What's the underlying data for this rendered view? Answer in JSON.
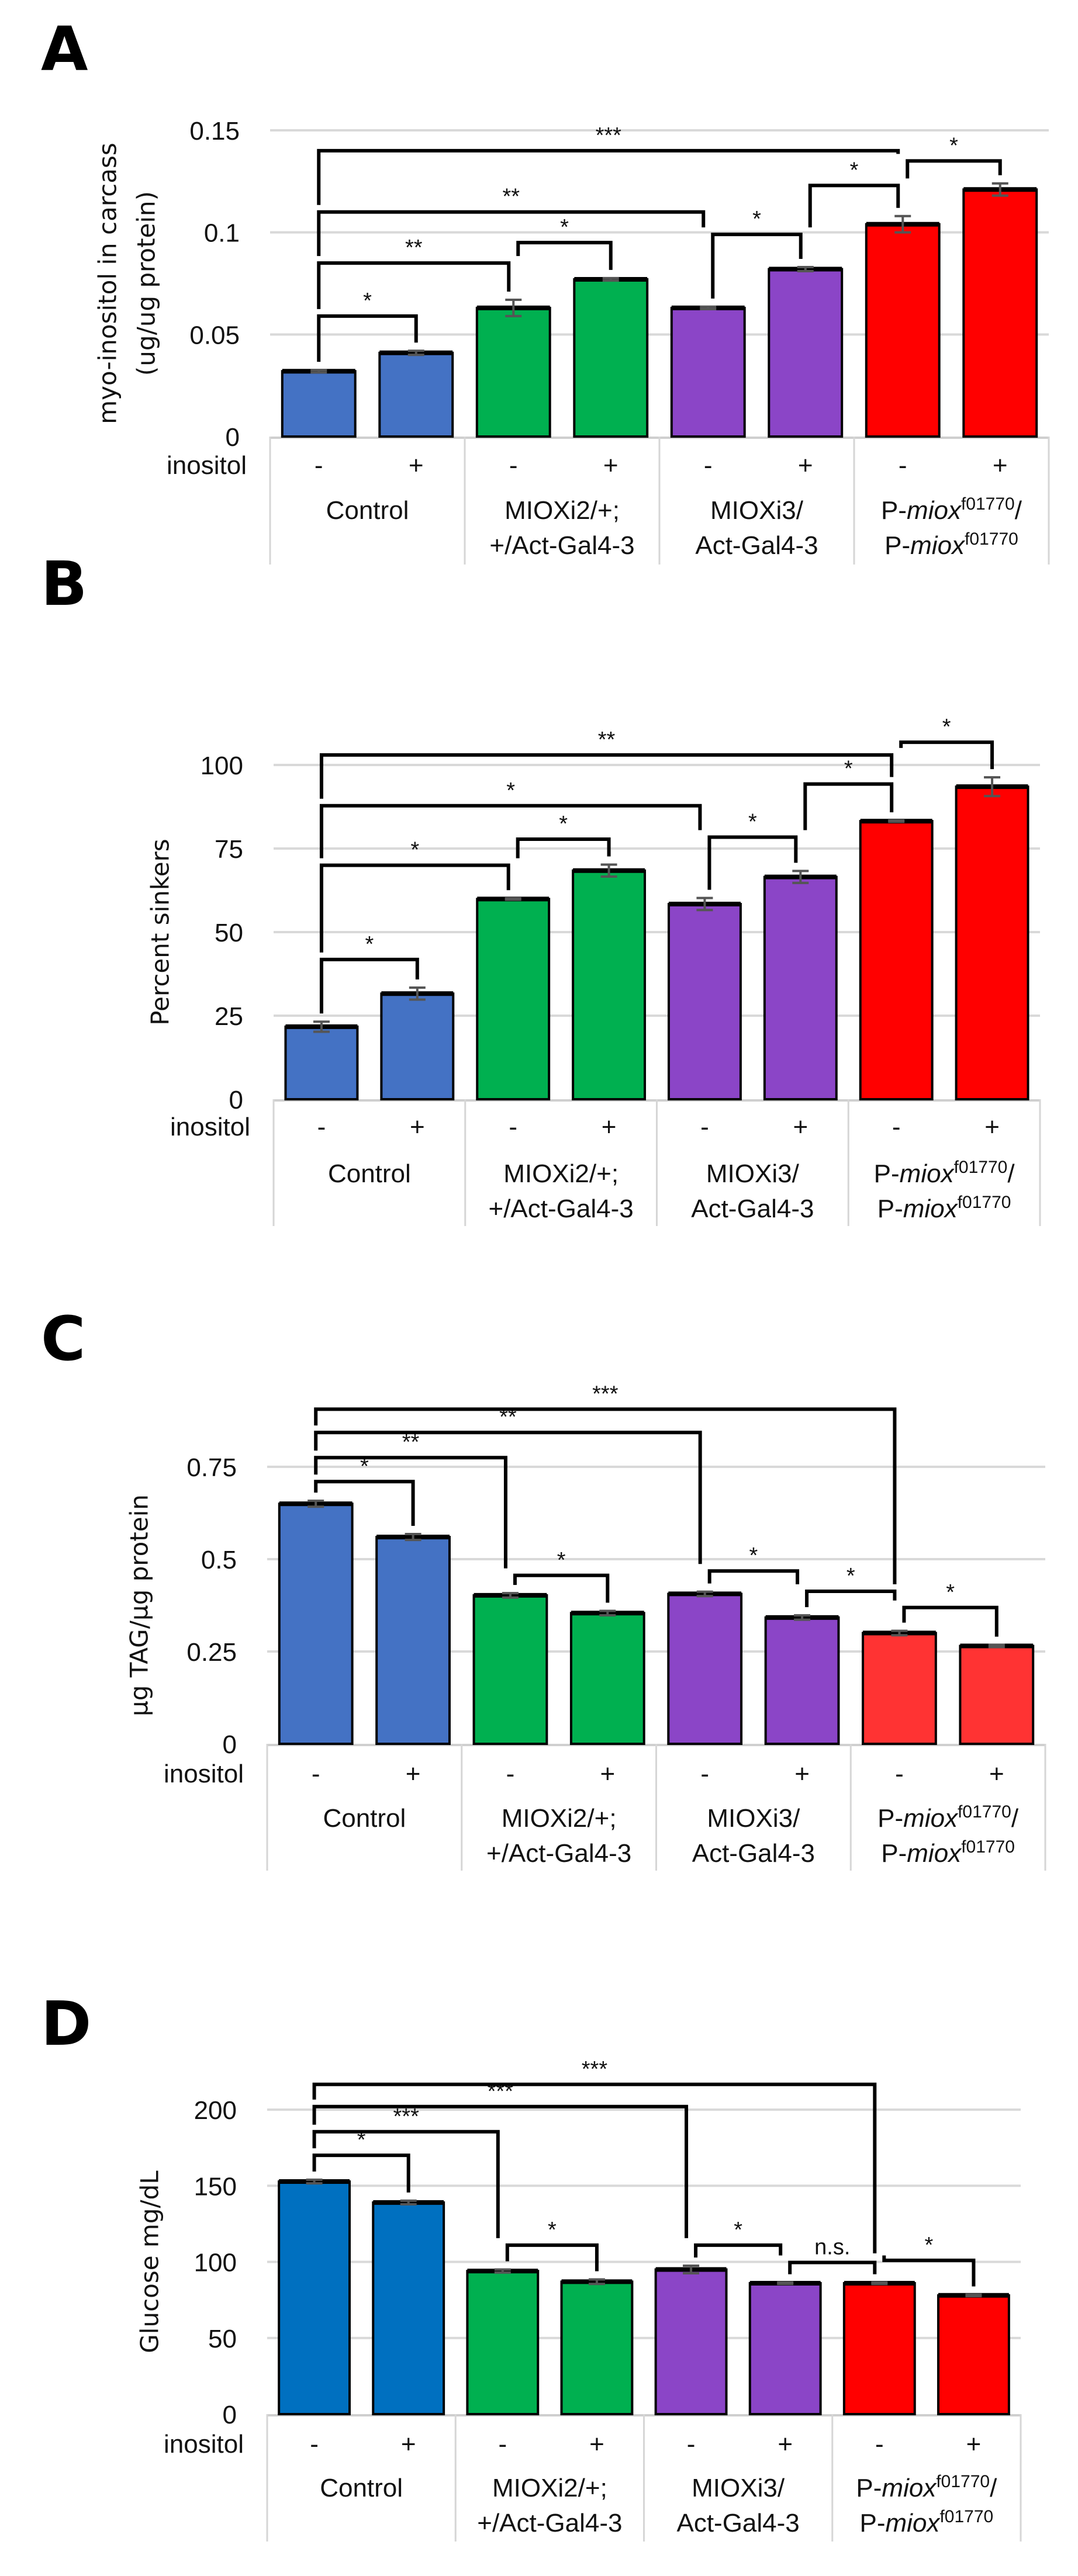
{
  "chart_data": [
    {
      "type": "bar",
      "panel_label": "A",
      "ylabel": [
        "myo-inositol in carcass",
        "(ug/ug protein)"
      ],
      "ylim": [
        0,
        0.15
      ],
      "yticks": [
        "0",
        "0.05",
        "0.1",
        "0.15"
      ],
      "ytick_values": [
        0,
        0.05,
        0.1,
        0.15
      ],
      "grid": true,
      "treatment_label": "inositol",
      "treatments": [
        "-",
        "+",
        "-",
        "+",
        "-",
        "+",
        "-",
        "+"
      ],
      "groups": [
        {
          "lines": [
            [
              {
                "t": "Control"
              }
            ]
          ]
        },
        {
          "lines": [
            [
              {
                "t": "MIOXi2/+;"
              }
            ],
            [
              {
                "t": "+/Act-Gal4-3"
              }
            ]
          ]
        },
        {
          "lines": [
            [
              {
                "t": "MIOXi3/"
              }
            ],
            [
              {
                "t": "Act-Gal4-3"
              }
            ]
          ]
        },
        {
          "lines": [
            [
              {
                "t": "P-"
              },
              {
                "t": "miox",
                "i": true
              },
              {
                "t": "f01770",
                "sup": true
              },
              {
                "t": "/"
              }
            ],
            [
              {
                "t": "P-"
              },
              {
                "t": "miox",
                "i": true
              },
              {
                "t": "f01770",
                "sup": true
              }
            ]
          ]
        }
      ],
      "colors": [
        "#4472C4",
        "#4472C4",
        "#00B050",
        "#00B050",
        "#8B45C7",
        "#8B45C7",
        "#FF0000",
        "#FF0000"
      ],
      "values": [
        0.032,
        0.041,
        0.063,
        0.077,
        0.063,
        0.082,
        0.104,
        0.121
      ],
      "errors": [
        0.0006,
        0.001,
        0.004,
        0.0006,
        0.0006,
        0.001,
        0.004,
        0.003
      ],
      "significance": [
        {
          "from": 0,
          "to": 1,
          "label": "*",
          "level": 0.059
        },
        {
          "from": 0,
          "to": 2,
          "label": "**",
          "level": 0.085
        },
        {
          "from": 2,
          "to": 3,
          "label": "*",
          "level": 0.095
        },
        {
          "from": 4,
          "to": 5,
          "label": "*",
          "level": 0.099
        },
        {
          "from": 0,
          "to": 4,
          "label": "**",
          "level": 0.11
        },
        {
          "from": 5,
          "to": 6,
          "label": "*",
          "level": 0.123
        },
        {
          "from": 6,
          "to": 7,
          "label": "*",
          "level": 0.135
        },
        {
          "from": 0,
          "to": 6,
          "label": "***",
          "level": 0.14
        }
      ]
    },
    {
      "type": "bar",
      "panel_label": "B",
      "ylabel": [
        "Percent sinkers"
      ],
      "ylim": [
        0,
        100
      ],
      "yticks": [
        "0",
        "25",
        "50",
        "75",
        "100"
      ],
      "ytick_values": [
        0,
        25,
        50,
        75,
        100
      ],
      "grid": true,
      "treatment_label": "inositol",
      "treatments": [
        "-",
        "+",
        "-",
        "+",
        "-",
        "+",
        "-",
        "+"
      ],
      "groups": [
        {
          "lines": [
            [
              {
                "t": "Control"
              }
            ]
          ]
        },
        {
          "lines": [
            [
              {
                "t": "MIOXi2/+;"
              }
            ],
            [
              {
                "t": "+/Act-Gal4-3"
              }
            ]
          ]
        },
        {
          "lines": [
            [
              {
                "t": "MIOXi3/"
              }
            ],
            [
              {
                "t": "Act-Gal4-3"
              }
            ]
          ]
        },
        {
          "lines": [
            [
              {
                "t": "P-"
              },
              {
                "t": "miox",
                "i": true
              },
              {
                "t": "f01770",
                "sup": true
              },
              {
                "t": "/"
              }
            ],
            [
              {
                "t": "P-"
              },
              {
                "t": "miox",
                "i": true
              },
              {
                "t": "f01770",
                "sup": true
              }
            ]
          ]
        }
      ],
      "colors": [
        "#4472C4",
        "#4472C4",
        "#00B050",
        "#00B050",
        "#8B45C7",
        "#8B45C7",
        "#FF0000",
        "#FF0000"
      ],
      "values": [
        21.7,
        31.6,
        59.9,
        68.4,
        58.4,
        66.5,
        83.2,
        93.5
      ],
      "errors": [
        1.5,
        1.8,
        0.2,
        1.8,
        1.8,
        1.8,
        0.2,
        2.8
      ],
      "significance": [
        {
          "from": 0,
          "to": 1,
          "label": "*",
          "level": 41.8
        },
        {
          "from": 0,
          "to": 2,
          "label": "*",
          "level": 70
        },
        {
          "from": 2,
          "to": 3,
          "label": "*",
          "level": 77.8
        },
        {
          "from": 4,
          "to": 5,
          "label": "*",
          "level": 78.4
        },
        {
          "from": 0,
          "to": 4,
          "label": "*",
          "level": 87.8
        },
        {
          "from": 5,
          "to": 6,
          "label": "*",
          "level": 94.3
        },
        {
          "from": 0,
          "to": 6,
          "label": "**",
          "level": 103
        },
        {
          "from": 6,
          "to": 7,
          "label": "*",
          "level": 106.8
        }
      ]
    },
    {
      "type": "bar",
      "panel_label": "C",
      "ylabel": [
        "µg TAG/µg protein"
      ],
      "ylim": [
        0,
        0.75
      ],
      "yticks": [
        "0",
        "0.25",
        "0.5",
        "0.75"
      ],
      "ytick_values": [
        0,
        0.25,
        0.5,
        0.75
      ],
      "grid": true,
      "treatment_label": "inositol",
      "treatments": [
        "-",
        "+",
        "-",
        "+",
        "-",
        "+",
        "-",
        "+"
      ],
      "groups": [
        {
          "lines": [
            [
              {
                "t": "Control"
              }
            ]
          ]
        },
        {
          "lines": [
            [
              {
                "t": "MIOXi2/+;"
              }
            ],
            [
              {
                "t": "+/Act-Gal4-3"
              }
            ]
          ]
        },
        {
          "lines": [
            [
              {
                "t": "MIOXi3/"
              }
            ],
            [
              {
                "t": "Act-Gal4-3"
              }
            ]
          ]
        },
        {
          "lines": [
            [
              {
                "t": "P-"
              },
              {
                "t": "miox",
                "i": true
              },
              {
                "t": "f01770",
                "sup": true
              },
              {
                "t": "/"
              }
            ],
            [
              {
                "t": "P-"
              },
              {
                "t": "miox",
                "i": true
              },
              {
                "t": "f01770",
                "sup": true
              }
            ]
          ]
        }
      ],
      "colors": [
        "#4472C4",
        "#4472C4",
        "#00B050",
        "#00B050",
        "#8B45C7",
        "#8B45C7",
        "#FF3333",
        "#FF3333"
      ],
      "values": [
        0.65,
        0.56,
        0.402,
        0.354,
        0.406,
        0.342,
        0.3,
        0.265
      ],
      "errors": [
        0.008,
        0.008,
        0.006,
        0.006,
        0.006,
        0.006,
        0.006,
        0.003
      ],
      "significance": [
        {
          "from": 0,
          "to": 1,
          "label": "*",
          "level": 0.71
        },
        {
          "from": 0,
          "to": 2,
          "label": "**",
          "level": 0.775
        },
        {
          "from": 0,
          "to": 4,
          "label": "**",
          "level": 0.843
        },
        {
          "from": 0,
          "to": 6,
          "label": "***",
          "level": 0.906
        },
        {
          "from": 2,
          "to": 3,
          "label": "*",
          "level": 0.456
        },
        {
          "from": 4,
          "to": 5,
          "label": "*",
          "level": 0.468
        },
        {
          "from": 5,
          "to": 6,
          "label": "*",
          "level": 0.413
        },
        {
          "from": 6,
          "to": 7,
          "label": "*",
          "level": 0.369
        }
      ]
    },
    {
      "type": "bar",
      "panel_label": "D",
      "ylabel": [
        "Glucose mg/dL"
      ],
      "ylim": [
        0,
        200
      ],
      "yticks": [
        "0",
        "50",
        "100",
        "150",
        "200"
      ],
      "ytick_values": [
        0,
        50,
        100,
        150,
        200
      ],
      "grid": true,
      "treatment_label": "inositol",
      "treatments": [
        "-",
        "+",
        "-",
        "+",
        "-",
        "+",
        "-",
        "+"
      ],
      "groups": [
        {
          "lines": [
            [
              {
                "t": "Control"
              }
            ]
          ]
        },
        {
          "lines": [
            [
              {
                "t": "MIOXi2/+;"
              }
            ],
            [
              {
                "t": "+/Act-Gal4-3"
              }
            ]
          ]
        },
        {
          "lines": [
            [
              {
                "t": "MIOXi3/"
              }
            ],
            [
              {
                "t": "Act-Gal4-3"
              }
            ]
          ]
        },
        {
          "lines": [
            [
              {
                "t": "P-"
              },
              {
                "t": "miox",
                "i": true
              },
              {
                "t": "f01770",
                "sup": true
              },
              {
                "t": "/"
              }
            ],
            [
              {
                "t": "P-"
              },
              {
                "t": "miox",
                "i": true
              },
              {
                "t": "f01770",
                "sup": true
              }
            ]
          ]
        }
      ],
      "colors": [
        "#0070C0",
        "#0070C0",
        "#00B050",
        "#00B050",
        "#8B45C7",
        "#8B45C7",
        "#FF0000",
        "#FF0000"
      ],
      "values": [
        152.8,
        139,
        94,
        87,
        95,
        86,
        86,
        78
      ],
      "errors": [
        1.2,
        1.2,
        1,
        1.5,
        2.5,
        0.5,
        0.5,
        0.5
      ],
      "significance": [
        {
          "from": 0,
          "to": 1,
          "label": "*",
          "level": 170
        },
        {
          "from": 0,
          "to": 2,
          "label": "***",
          "level": 185.5
        },
        {
          "from": 0,
          "to": 4,
          "label": "***",
          "level": 202
        },
        {
          "from": 0,
          "to": 6,
          "label": "***",
          "level": 216.6
        },
        {
          "from": 2,
          "to": 3,
          "label": "*",
          "level": 111
        },
        {
          "from": 4,
          "to": 5,
          "label": "*",
          "level": 111
        },
        {
          "from": 5,
          "to": 6,
          "label": "n.s.",
          "level": 99.6
        },
        {
          "from": 6,
          "to": 7,
          "label": "*",
          "level": 101
        }
      ]
    }
  ]
}
